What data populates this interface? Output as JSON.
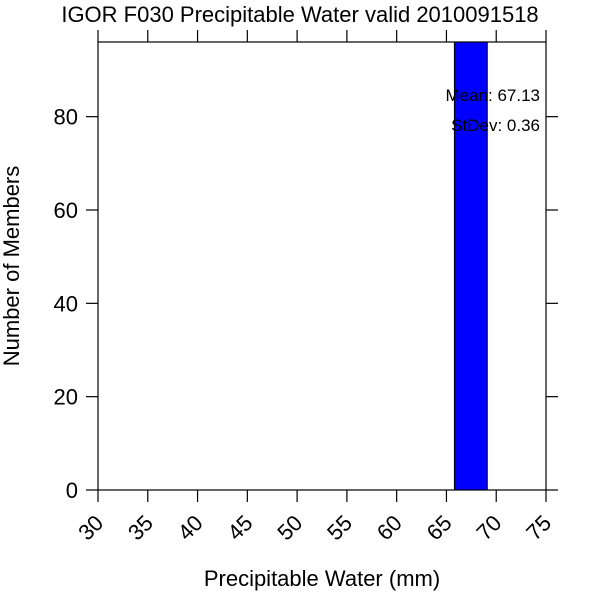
{
  "chart_data": {
    "type": "bar",
    "title": "IGOR F030 Precipitable Water valid 2010091518",
    "xlabel": "Precipitable Water (mm)",
    "ylabel": "Number of Members",
    "xlim": [
      30,
      75
    ],
    "ylim": [
      0,
      96
    ],
    "xticks": [
      30,
      35,
      40,
      45,
      50,
      55,
      60,
      65,
      70,
      75
    ],
    "yticks": [
      0,
      20,
      40,
      60,
      80
    ],
    "bars": [
      {
        "x_start": 65.8,
        "x_end": 69.1,
        "value": 96
      }
    ],
    "bar_color": "#0000ff",
    "grid": false,
    "annotations": {
      "mean": "Mean: 67.13",
      "stdev": "StDev: 0.36"
    }
  }
}
